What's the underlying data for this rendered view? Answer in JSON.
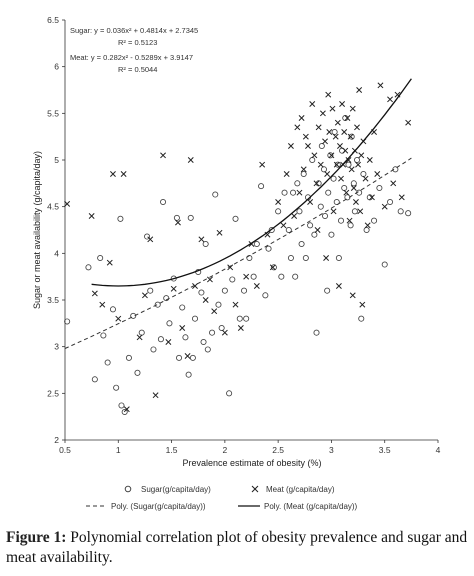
{
  "chart_data": {
    "type": "scatter",
    "xlabel": "Prevalence estimate of obesity (%)",
    "ylabel": "Sugar or meat availability (g/capita/day)",
    "xlim": [
      0.5,
      4
    ],
    "ylim": [
      2,
      6.5
    ],
    "xticks": [
      "0.5",
      "1",
      "1.5",
      "2",
      "2.5",
      "3",
      "3.5",
      "4"
    ],
    "yticks": [
      "2",
      "2.5",
      "3",
      "3.5",
      "4",
      "4.5",
      "5",
      "5.5",
      "6",
      "6.5"
    ],
    "grid": false,
    "legend_position": "bottom",
    "annotations": {
      "sugar_eq": "Sugar: y = 0.036x² + 0.4814x + 2.7345",
      "sugar_r2": "R² = 0.5123",
      "meat_eq": "Meat: y = 0.282x² - 0.5289x + 3.9147",
      "meat_r2": "R² = 0.5044"
    },
    "legend": {
      "sugar": "Sugar(g/capita/day)",
      "meat": "Meat (g/capita/day)",
      "sugar_fit": "Poly. (Sugar(g/capita/day))",
      "meat_fit": "Poly. (Meat (g/capita/day))"
    },
    "series": [
      {
        "name": "Sugar(g/capita/day)",
        "marker": "circle",
        "points": [
          [
            0.52,
            3.27
          ],
          [
            0.72,
            3.85
          ],
          [
            0.78,
            2.65
          ],
          [
            0.83,
            3.95
          ],
          [
            0.86,
            3.12
          ],
          [
            0.9,
            2.83
          ],
          [
            0.95,
            3.4
          ],
          [
            0.98,
            2.56
          ],
          [
            1.03,
            2.37
          ],
          [
            1.06,
            2.3
          ],
          [
            1.02,
            4.37
          ],
          [
            1.1,
            2.88
          ],
          [
            1.14,
            3.33
          ],
          [
            1.18,
            2.72
          ],
          [
            1.22,
            3.15
          ],
          [
            1.27,
            4.18
          ],
          [
            1.3,
            3.6
          ],
          [
            1.33,
            2.97
          ],
          [
            1.37,
            3.45
          ],
          [
            1.4,
            3.08
          ],
          [
            1.42,
            4.55
          ],
          [
            1.45,
            3.52
          ],
          [
            1.48,
            3.25
          ],
          [
            1.52,
            3.73
          ],
          [
            1.55,
            4.38
          ],
          [
            1.57,
            2.88
          ],
          [
            1.6,
            3.42
          ],
          [
            1.63,
            3.1
          ],
          [
            1.66,
            2.7
          ],
          [
            1.68,
            4.38
          ],
          [
            1.7,
            2.88
          ],
          [
            1.72,
            3.3
          ],
          [
            1.75,
            3.8
          ],
          [
            1.78,
            3.58
          ],
          [
            1.8,
            3.05
          ],
          [
            1.82,
            4.1
          ],
          [
            1.84,
            2.97
          ],
          [
            1.88,
            3.15
          ],
          [
            1.91,
            4.63
          ],
          [
            1.94,
            3.45
          ],
          [
            1.97,
            3.2
          ],
          [
            2.0,
            3.6
          ],
          [
            2.04,
            2.5
          ],
          [
            2.07,
            3.72
          ],
          [
            2.1,
            4.37
          ],
          [
            2.14,
            3.3
          ],
          [
            2.18,
            3.6
          ],
          [
            2.2,
            3.3
          ],
          [
            2.23,
            3.95
          ],
          [
            2.27,
            3.75
          ],
          [
            2.3,
            4.1
          ],
          [
            2.34,
            4.72
          ],
          [
            2.38,
            3.55
          ],
          [
            2.41,
            4.05
          ],
          [
            2.44,
            4.25
          ],
          [
            2.46,
            3.85
          ],
          [
            2.5,
            4.45
          ],
          [
            2.53,
            3.75
          ],
          [
            2.56,
            4.65
          ],
          [
            2.6,
            4.25
          ],
          [
            2.62,
            3.95
          ],
          [
            2.64,
            4.65
          ],
          [
            2.66,
            3.75
          ],
          [
            2.68,
            4.75
          ],
          [
            2.7,
            4.45
          ],
          [
            2.72,
            4.1
          ],
          [
            2.74,
            4.85
          ],
          [
            2.76,
            3.95
          ],
          [
            2.78,
            4.6
          ],
          [
            2.8,
            4.3
          ],
          [
            2.82,
            5.0
          ],
          [
            2.84,
            4.2
          ],
          [
            2.86,
            3.15
          ],
          [
            2.88,
            4.75
          ],
          [
            2.9,
            4.5
          ],
          [
            2.91,
            5.15
          ],
          [
            2.93,
            4.9
          ],
          [
            2.94,
            4.4
          ],
          [
            2.96,
            3.6
          ],
          [
            2.97,
            4.65
          ],
          [
            2.99,
            5.05
          ],
          [
            3.0,
            4.2
          ],
          [
            3.02,
            4.8
          ],
          [
            3.03,
            5.3
          ],
          [
            3.05,
            4.55
          ],
          [
            3.06,
            4.95
          ],
          [
            3.07,
            3.95
          ],
          [
            3.09,
            4.35
          ],
          [
            3.1,
            5.1
          ],
          [
            3.12,
            4.7
          ],
          [
            3.13,
            5.45
          ],
          [
            3.15,
            4.6
          ],
          [
            3.16,
            4.95
          ],
          [
            3.18,
            4.3
          ],
          [
            3.19,
            5.25
          ],
          [
            3.21,
            4.75
          ],
          [
            3.22,
            4.45
          ],
          [
            3.24,
            5.0
          ],
          [
            3.26,
            4.65
          ],
          [
            3.28,
            3.3
          ],
          [
            3.3,
            4.85
          ],
          [
            3.33,
            4.25
          ],
          [
            3.36,
            4.6
          ],
          [
            3.4,
            4.35
          ],
          [
            3.45,
            4.7
          ],
          [
            3.5,
            3.88
          ],
          [
            3.55,
            4.55
          ],
          [
            3.6,
            4.9
          ],
          [
            3.65,
            4.45
          ],
          [
            3.72,
            4.43
          ]
        ]
      },
      {
        "name": "Meat (g/capita/day)",
        "marker": "cross",
        "points": [
          [
            0.52,
            4.53
          ],
          [
            0.75,
            4.4
          ],
          [
            0.78,
            3.57
          ],
          [
            0.85,
            3.45
          ],
          [
            0.92,
            3.9
          ],
          [
            0.95,
            4.85
          ],
          [
            1.0,
            3.3
          ],
          [
            1.05,
            4.85
          ],
          [
            1.08,
            2.33
          ],
          [
            1.2,
            3.1
          ],
          [
            1.25,
            3.55
          ],
          [
            1.3,
            4.15
          ],
          [
            1.35,
            2.48
          ],
          [
            1.42,
            5.05
          ],
          [
            1.47,
            3.05
          ],
          [
            1.52,
            3.62
          ],
          [
            1.56,
            4.33
          ],
          [
            1.6,
            3.2
          ],
          [
            1.65,
            2.9
          ],
          [
            1.68,
            5.0
          ],
          [
            1.72,
            3.65
          ],
          [
            1.78,
            4.15
          ],
          [
            1.82,
            3.5
          ],
          [
            1.86,
            3.72
          ],
          [
            1.9,
            3.38
          ],
          [
            1.95,
            4.22
          ],
          [
            2.0,
            3.15
          ],
          [
            2.05,
            3.85
          ],
          [
            2.1,
            3.45
          ],
          [
            2.15,
            3.2
          ],
          [
            2.2,
            3.75
          ],
          [
            2.25,
            4.1
          ],
          [
            2.3,
            3.65
          ],
          [
            2.35,
            4.95
          ],
          [
            2.4,
            4.2
          ],
          [
            2.45,
            3.85
          ],
          [
            2.5,
            4.55
          ],
          [
            2.55,
            4.3
          ],
          [
            2.58,
            4.85
          ],
          [
            2.62,
            5.15
          ],
          [
            2.65,
            4.4
          ],
          [
            2.68,
            5.35
          ],
          [
            2.7,
            4.65
          ],
          [
            2.72,
            5.45
          ],
          [
            2.74,
            4.9
          ],
          [
            2.76,
            5.25
          ],
          [
            2.78,
            5.15
          ],
          [
            2.8,
            4.55
          ],
          [
            2.82,
            5.6
          ],
          [
            2.84,
            5.05
          ],
          [
            2.86,
            4.75
          ],
          [
            2.88,
            5.35
          ],
          [
            2.9,
            4.95
          ],
          [
            2.92,
            5.5
          ],
          [
            2.94,
            5.2
          ],
          [
            2.96,
            4.85
          ],
          [
            2.97,
            5.7
          ],
          [
            2.98,
            5.3
          ],
          [
            3.0,
            5.05
          ],
          [
            3.01,
            5.55
          ],
          [
            3.02,
            4.45
          ],
          [
            3.04,
            5.25
          ],
          [
            3.05,
            4.95
          ],
          [
            3.06,
            5.4
          ],
          [
            3.08,
            5.15
          ],
          [
            3.09,
            4.8
          ],
          [
            3.1,
            5.6
          ],
          [
            3.11,
            4.95
          ],
          [
            3.12,
            5.3
          ],
          [
            3.13,
            5.1
          ],
          [
            3.14,
            4.65
          ],
          [
            3.15,
            5.45
          ],
          [
            3.16,
            5.0
          ],
          [
            3.17,
            4.35
          ],
          [
            3.18,
            5.25
          ],
          [
            3.19,
            4.9
          ],
          [
            3.2,
            5.55
          ],
          [
            3.21,
            4.7
          ],
          [
            3.22,
            5.1
          ],
          [
            3.23,
            4.55
          ],
          [
            3.24,
            5.35
          ],
          [
            3.25,
            4.95
          ],
          [
            3.26,
            5.75
          ],
          [
            3.27,
            4.45
          ],
          [
            3.28,
            5.05
          ],
          [
            3.29,
            3.45
          ],
          [
            3.3,
            5.2
          ],
          [
            3.32,
            4.8
          ],
          [
            3.34,
            4.3
          ],
          [
            3.36,
            5.0
          ],
          [
            3.38,
            4.6
          ],
          [
            3.4,
            5.3
          ],
          [
            3.43,
            4.85
          ],
          [
            3.46,
            5.8
          ],
          [
            3.5,
            4.5
          ],
          [
            3.55,
            5.65
          ],
          [
            3.58,
            4.75
          ],
          [
            3.62,
            5.7
          ],
          [
            3.66,
            4.6
          ],
          [
            3.72,
            5.4
          ],
          [
            2.95,
            3.95
          ],
          [
            3.07,
            3.65
          ],
          [
            2.87,
            4.25
          ],
          [
            3.2,
            3.55
          ]
        ]
      }
    ],
    "fits": [
      {
        "name": "Poly. (Sugar(g/capita/day))",
        "style": "dashed",
        "x_range": [
          0.5,
          3.75
        ],
        "y_range": [
          2.98,
          5.02
        ]
      },
      {
        "name": "Poly. (Meat (g/capita/day))",
        "style": "solid",
        "x_range": [
          0.75,
          3.75
        ],
        "y_min": 3.65,
        "y_end": 5.87
      }
    ]
  },
  "caption": {
    "label": "Figure 1:",
    "text": " Polynomial correlation plot of obesity prevalence and sugar and meat availability."
  }
}
